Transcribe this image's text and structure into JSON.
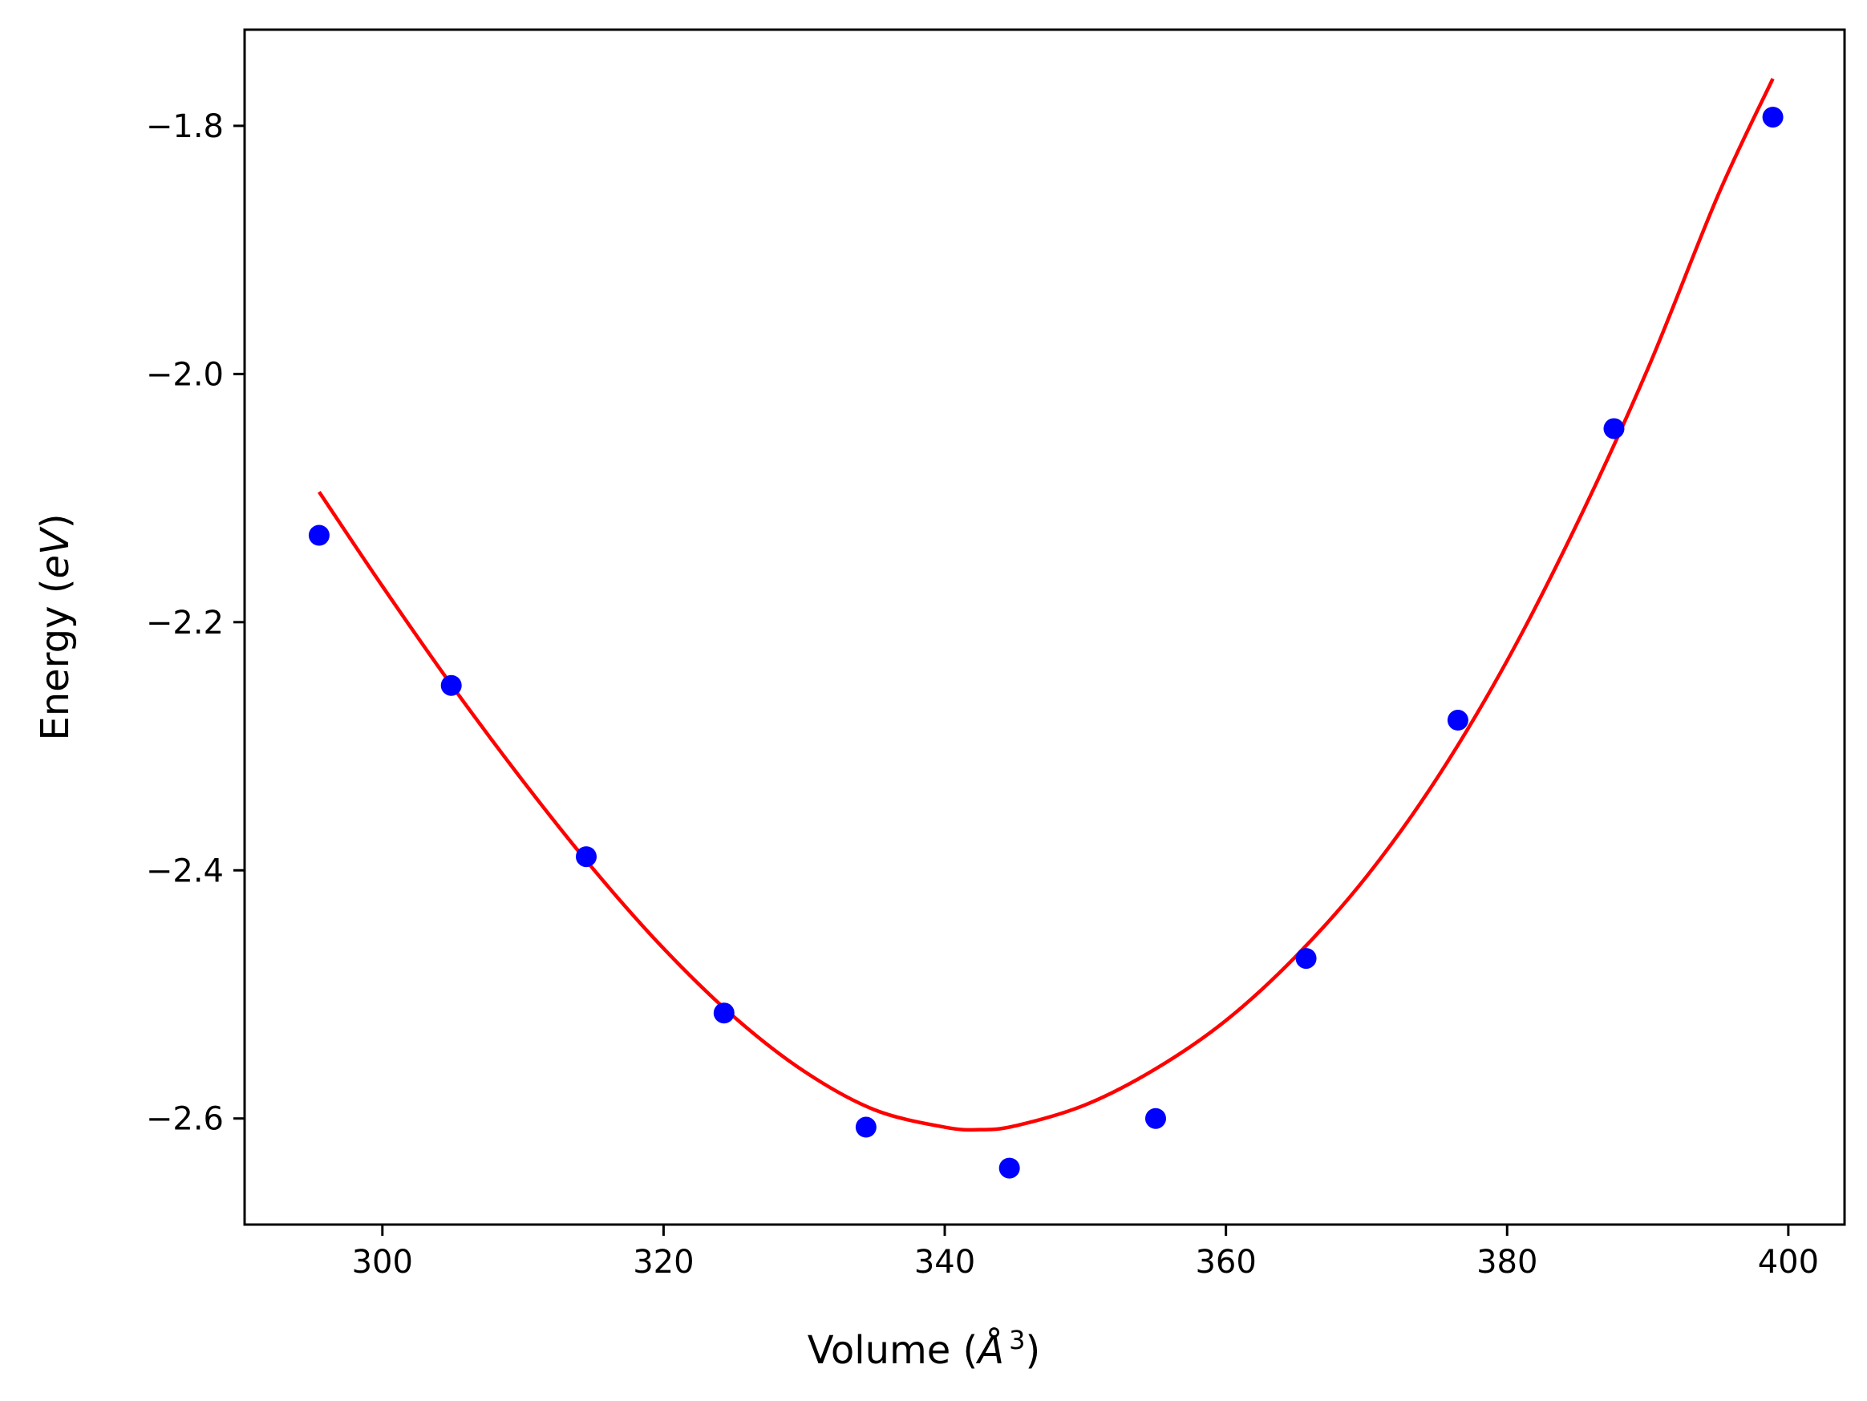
{
  "chart_data": {
    "type": "scatter",
    "xlabel": {
      "prefix": "Volume (",
      "symbol": "Å",
      "superscript": "3",
      "suffix": ")"
    },
    "ylabel": {
      "prefix": "Energy (",
      "symbol": "eV",
      "suffix": ")"
    },
    "xlim": [
      290.2,
      404.0
    ],
    "ylim": [
      -2.6855,
      -1.7225
    ],
    "xticks": [
      {
        "value": 300,
        "label": "300"
      },
      {
        "value": 320,
        "label": "320"
      },
      {
        "value": 340,
        "label": "340"
      },
      {
        "value": 360,
        "label": "360"
      },
      {
        "value": 380,
        "label": "380"
      },
      {
        "value": 400,
        "label": "400"
      }
    ],
    "yticks": [
      {
        "value": -1.8,
        "label": "−1.8"
      },
      {
        "value": -2.0,
        "label": "−2.0"
      },
      {
        "value": -2.2,
        "label": "−2.2"
      },
      {
        "value": -2.4,
        "label": "−2.4"
      },
      {
        "value": -2.6,
        "label": "−2.6"
      }
    ],
    "grid": false,
    "series": [
      {
        "kind": "points",
        "color": "#0000ff",
        "x": [
          295.5,
          304.9,
          314.5,
          324.3,
          334.4,
          344.6,
          355.0,
          365.7,
          376.5,
          387.6,
          398.9
        ],
        "y": [
          -2.13,
          -2.251,
          -2.389,
          -2.515,
          -2.607,
          -2.64,
          -2.6,
          -2.471,
          -2.279,
          -2.044,
          -1.793
        ]
      },
      {
        "kind": "fit-curve",
        "color": "#ff0000",
        "x": [
          295.5,
          300,
          305,
          310,
          315,
          320,
          325,
          330,
          335,
          340,
          342.5,
          345,
          350,
          355,
          360,
          365,
          370,
          375,
          380,
          385,
          390,
          395,
          398.9
        ],
        "y": [
          -2.095,
          -2.171,
          -2.252,
          -2.328,
          -2.399,
          -2.463,
          -2.518,
          -2.562,
          -2.593,
          -2.607,
          -2.609,
          -2.606,
          -2.589,
          -2.56,
          -2.521,
          -2.469,
          -2.405,
          -2.326,
          -2.231,
          -2.12,
          -1.996,
          -1.856,
          -1.762
        ]
      }
    ],
    "colors": {
      "background": "#ffffff",
      "axes": "#000000",
      "points": "#0000ff",
      "fit": "#ff0000"
    }
  }
}
